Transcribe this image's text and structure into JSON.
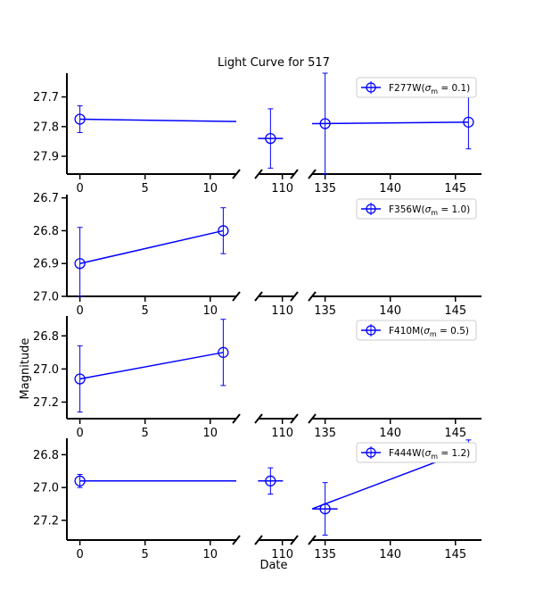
{
  "chart_data": {
    "type": "line",
    "title": "Light Curve for 517",
    "xlabel": "Date",
    "ylabel": "Magnitude",
    "inverted_y": true,
    "broken_x_axis": true,
    "x_segments": [
      {
        "range": [
          -1,
          12
        ],
        "ticks": [
          0,
          5,
          10
        ]
      },
      {
        "range": [
          108,
          111
        ],
        "ticks": [
          110
        ]
      },
      {
        "range": [
          134,
          147
        ],
        "ticks": [
          135,
          140,
          145
        ]
      }
    ],
    "color": "#0000ff",
    "panels": [
      {
        "legend": "F277W",
        "sigma_label": "0.1",
        "ylim": [
          27.96,
          27.62
        ],
        "yticks": [
          27.7,
          27.8,
          27.9
        ],
        "ytick_labels": [
          "27.7",
          "27.8",
          "27.9"
        ],
        "points": [
          {
            "x": 0,
            "y": 27.775,
            "yerr": 0.045
          },
          {
            "x": 109,
            "y": 27.84,
            "yerr": 0.1,
            "xerr": 0.9
          },
          {
            "x": 135,
            "y": 27.79,
            "yerr": 0.17
          },
          {
            "x": 146,
            "y": 27.785,
            "yerr": 0.09
          }
        ],
        "line_from": [
          0,
          27.775
        ],
        "line_to_edge": 27.783
      },
      {
        "legend": "F356W",
        "sigma_label": "1.0",
        "ylim": [
          27.0,
          26.69
        ],
        "yticks": [
          26.7,
          26.8,
          26.9,
          27.0
        ],
        "ytick_labels": [
          "26.7",
          "26.8",
          "26.9",
          "27.0"
        ],
        "points": [
          {
            "x": 0,
            "y": 26.9,
            "yerr": 0.11
          },
          {
            "x": 11,
            "y": 26.8,
            "yerr": 0.07
          }
        ]
      },
      {
        "legend": "F410M",
        "sigma_label": "0.5",
        "ylim": [
          27.3,
          26.68
        ],
        "yticks": [
          26.8,
          27.0,
          27.2
        ],
        "ytick_labels": [
          "26.8",
          "27.0",
          "27.2"
        ],
        "points": [
          {
            "x": 0,
            "y": 27.06,
            "yerr": 0.2
          },
          {
            "x": 11,
            "y": 26.9,
            "yerr": 0.2
          }
        ]
      },
      {
        "legend": "F444W",
        "sigma_label": "1.2",
        "ylim": [
          27.32,
          26.7
        ],
        "yticks": [
          26.8,
          27.0,
          27.2
        ],
        "ytick_labels": [
          "26.8",
          "27.0",
          "27.2"
        ],
        "points": [
          {
            "x": 0,
            "y": 26.96,
            "yerr": 0.04
          },
          {
            "x": 109,
            "y": 26.96,
            "yerr": 0.08,
            "xerr": 0.9
          },
          {
            "x": 135,
            "y": 27.13,
            "yerr": 0.16,
            "xerr": 0.9
          },
          {
            "x": 146,
            "y": 26.77,
            "yerr": 0.06
          }
        ],
        "line_from": [
          0,
          26.96
        ],
        "line_to_edge": 26.96
      }
    ]
  }
}
